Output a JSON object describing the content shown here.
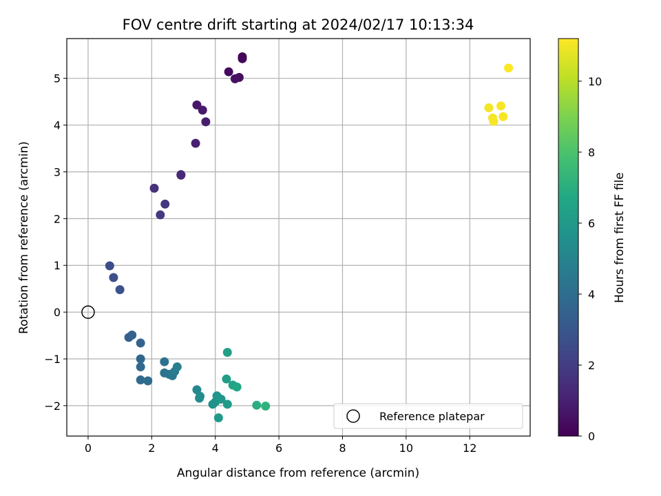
{
  "chart_data": {
    "type": "scatter",
    "title": "FOV centre drift starting at 2024/02/17 10:13:34",
    "xlabel": "Angular distance from reference (arcmin)",
    "ylabel": "Rotation from reference (arcmin)",
    "xlim": [
      -0.67,
      13.9
    ],
    "ylim": [
      -2.65,
      5.85
    ],
    "x_ticks": [
      0,
      2,
      4,
      6,
      8,
      10,
      12
    ],
    "y_ticks": [
      -2,
      -1,
      0,
      1,
      2,
      3,
      4,
      5
    ],
    "x_tick_labels": [
      "0",
      "2",
      "4",
      "6",
      "8",
      "10",
      "12"
    ],
    "y_tick_labels": [
      "−2",
      "−1",
      "0",
      "1",
      "2",
      "3",
      "4",
      "5"
    ],
    "grid": true,
    "legend": {
      "placement": "lower-right",
      "entries": [
        "Reference platepar"
      ]
    },
    "reference_point": {
      "x": 0,
      "y": 0,
      "label": "Reference platepar"
    },
    "colorbar": {
      "label": "Hours from first FF file",
      "colormap": "viridis",
      "min": 0,
      "max": 11.2,
      "ticks": [
        0,
        2,
        4,
        6,
        8,
        10
      ],
      "tick_labels": [
        "0",
        "2",
        "4",
        "6",
        "8",
        "10"
      ]
    },
    "points": [
      {
        "x": 4.85,
        "y": 5.46,
        "c": 0.1
      },
      {
        "x": 4.85,
        "y": 5.42,
        "c": 0.2
      },
      {
        "x": 4.42,
        "y": 5.14,
        "c": 0.3
      },
      {
        "x": 4.75,
        "y": 5.02,
        "c": 0.4
      },
      {
        "x": 4.62,
        "y": 4.99,
        "c": 0.5
      },
      {
        "x": 3.42,
        "y": 4.43,
        "c": 0.7
      },
      {
        "x": 3.6,
        "y": 4.32,
        "c": 0.8
      },
      {
        "x": 3.7,
        "y": 4.07,
        "c": 0.9
      },
      {
        "x": 3.38,
        "y": 3.61,
        "c": 1.0
      },
      {
        "x": 2.92,
        "y": 2.94,
        "c": 1.2
      },
      {
        "x": 2.92,
        "y": 2.93,
        "c": 1.3
      },
      {
        "x": 2.08,
        "y": 2.65,
        "c": 1.6
      },
      {
        "x": 2.42,
        "y": 2.31,
        "c": 1.8
      },
      {
        "x": 2.27,
        "y": 2.08,
        "c": 1.9
      },
      {
        "x": 0.68,
        "y": 0.99,
        "c": 2.6
      },
      {
        "x": 0.8,
        "y": 0.74,
        "c": 2.7
      },
      {
        "x": 1.0,
        "y": 0.48,
        "c": 2.9
      },
      {
        "x": 1.28,
        "y": -0.54,
        "c": 3.4
      },
      {
        "x": 1.38,
        "y": -0.49,
        "c": 3.5
      },
      {
        "x": 1.65,
        "y": -0.66,
        "c": 3.6
      },
      {
        "x": 1.65,
        "y": -1.0,
        "c": 3.7
      },
      {
        "x": 1.65,
        "y": -1.17,
        "c": 3.8
      },
      {
        "x": 1.65,
        "y": -1.45,
        "c": 3.9
      },
      {
        "x": 1.88,
        "y": -1.47,
        "c": 4.0
      },
      {
        "x": 2.4,
        "y": -1.06,
        "c": 4.2
      },
      {
        "x": 2.4,
        "y": -1.3,
        "c": 4.3
      },
      {
        "x": 2.55,
        "y": -1.33,
        "c": 4.4
      },
      {
        "x": 2.65,
        "y": -1.36,
        "c": 4.5
      },
      {
        "x": 2.72,
        "y": -1.27,
        "c": 4.6
      },
      {
        "x": 2.8,
        "y": -1.17,
        "c": 4.7
      },
      {
        "x": 3.42,
        "y": -1.66,
        "c": 5.2
      },
      {
        "x": 3.5,
        "y": -1.84,
        "c": 5.3
      },
      {
        "x": 3.52,
        "y": -1.8,
        "c": 5.4
      },
      {
        "x": 3.92,
        "y": -1.97,
        "c": 5.6
      },
      {
        "x": 4.0,
        "y": -1.92,
        "c": 5.7
      },
      {
        "x": 4.05,
        "y": -1.79,
        "c": 5.8
      },
      {
        "x": 4.18,
        "y": -1.86,
        "c": 5.9
      },
      {
        "x": 4.1,
        "y": -2.26,
        "c": 6.0
      },
      {
        "x": 4.38,
        "y": -1.97,
        "c": 6.1
      },
      {
        "x": 4.35,
        "y": -1.43,
        "c": 6.2
      },
      {
        "x": 4.38,
        "y": -0.86,
        "c": 6.3
      },
      {
        "x": 4.55,
        "y": -1.56,
        "c": 6.5
      },
      {
        "x": 4.68,
        "y": -1.6,
        "c": 6.6
      },
      {
        "x": 5.3,
        "y": -1.99,
        "c": 7.0
      },
      {
        "x": 5.58,
        "y": -2.01,
        "c": 7.2
      },
      {
        "x": 12.6,
        "y": 4.37,
        "c": 11.0
      },
      {
        "x": 12.72,
        "y": 4.15,
        "c": 11.0
      },
      {
        "x": 12.75,
        "y": 4.08,
        "c": 11.1
      },
      {
        "x": 12.98,
        "y": 4.41,
        "c": 11.1
      },
      {
        "x": 13.05,
        "y": 4.18,
        "c": 11.1
      },
      {
        "x": 13.22,
        "y": 5.22,
        "c": 11.2
      }
    ]
  }
}
